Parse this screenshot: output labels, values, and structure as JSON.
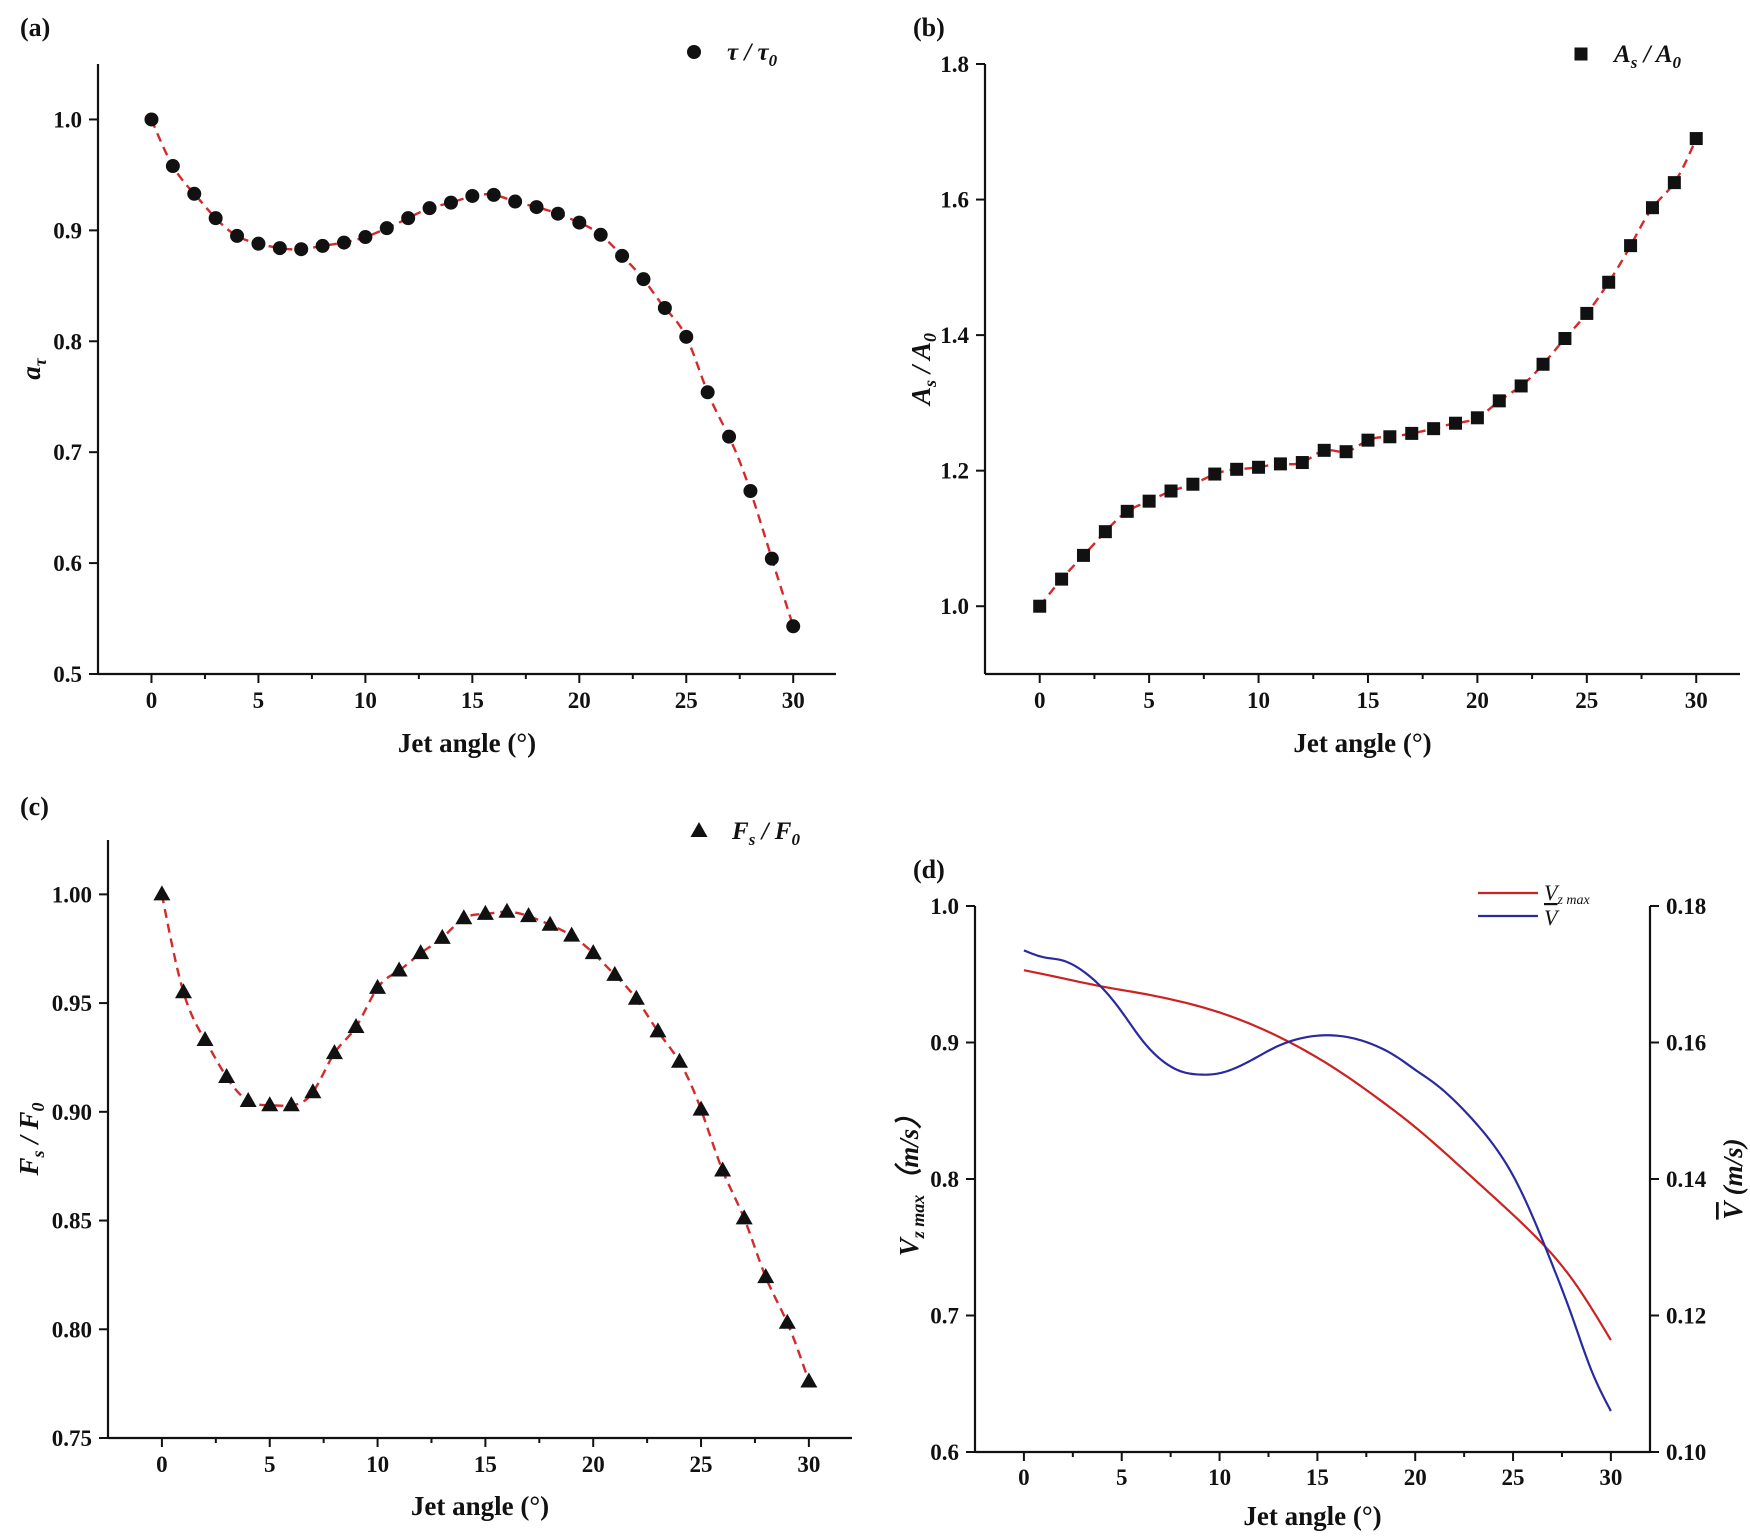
{
  "chart_data": [
    {
      "panel_label": "(a)",
      "type": "scatter",
      "marker": "circle",
      "xlabel": "Jet angle (°)",
      "ylabel": {
        "main": "a",
        "sub": "τ"
      },
      "xlim": [
        -2.5,
        32
      ],
      "ylim": [
        0.5,
        1.05
      ],
      "xticks": [
        "0",
        "5",
        "10",
        "15",
        "20",
        "25",
        "30"
      ],
      "yticks": [
        "0.5",
        "0.6",
        "0.7",
        "0.8",
        "0.9",
        "1.0"
      ],
      "legend": {
        "position": "top-right",
        "text": "τ / τ",
        "sub": "0"
      },
      "fit_color": "#d42a2a",
      "series": [
        {
          "name": "τ / τ0",
          "x": [
            0,
            1,
            2,
            3,
            4,
            5,
            6,
            7,
            8,
            9,
            10,
            11,
            12,
            13,
            14,
            15,
            16,
            17,
            18,
            19,
            20,
            21,
            22,
            23,
            24,
            25,
            26,
            27,
            28,
            29,
            30
          ],
          "y": [
            1.0,
            0.958,
            0.933,
            0.911,
            0.895,
            0.888,
            0.884,
            0.883,
            0.886,
            0.889,
            0.894,
            0.902,
            0.911,
            0.92,
            0.925,
            0.931,
            0.932,
            0.926,
            0.921,
            0.915,
            0.907,
            0.896,
            0.877,
            0.856,
            0.83,
            0.804,
            0.754,
            0.714,
            0.665,
            0.604,
            0.543
          ]
        }
      ]
    },
    {
      "panel_label": "(b)",
      "type": "scatter",
      "marker": "square",
      "xlabel": "Jet angle (°)",
      "ylabel": {
        "main": "A",
        "sub": "s",
        "main2": " / A",
        "sub2": "0"
      },
      "xlim": [
        -2.5,
        32
      ],
      "ylim": [
        0.9,
        1.8
      ],
      "xticks": [
        "0",
        "5",
        "10",
        "15",
        "20",
        "25",
        "30"
      ],
      "yticks": [
        "1.0",
        "1.2",
        "1.4",
        "1.6",
        "1.8"
      ],
      "legend": {
        "position": "top-right",
        "text": "A",
        "sub": "s",
        "text2": " / A",
        "sub2": "0"
      },
      "fit_color": "#d42a2a",
      "series": [
        {
          "name": "As / A0",
          "x": [
            0,
            1,
            2,
            3,
            4,
            5,
            6,
            7,
            8,
            9,
            10,
            11,
            12,
            13,
            14,
            15,
            16,
            17,
            18,
            19,
            20,
            21,
            22,
            23,
            24,
            25,
            26,
            27,
            28,
            29,
            30
          ],
          "y": [
            1.0,
            1.04,
            1.075,
            1.11,
            1.14,
            1.155,
            1.17,
            1.18,
            1.195,
            1.202,
            1.205,
            1.21,
            1.212,
            1.23,
            1.228,
            1.245,
            1.25,
            1.255,
            1.262,
            1.27,
            1.278,
            1.303,
            1.325,
            1.357,
            1.395,
            1.432,
            1.478,
            1.532,
            1.588,
            1.625,
            1.69
          ]
        }
      ]
    },
    {
      "panel_label": "(c)",
      "type": "scatter",
      "marker": "triangle",
      "xlabel": "Jet angle (°)",
      "ylabel": {
        "main": "F",
        "sub": "s",
        "main2": " / F",
        "sub2": "0"
      },
      "xlim": [
        -2.5,
        32
      ],
      "ylim": [
        0.75,
        1.025
      ],
      "xticks": [
        "0",
        "5",
        "10",
        "15",
        "20",
        "25",
        "30"
      ],
      "yticks": [
        "0.75",
        "0.80",
        "0.85",
        "0.90",
        "0.95",
        "1.00"
      ],
      "legend": {
        "position": "top-right",
        "text": "F",
        "sub": "s",
        "text2": " / F",
        "sub2": "0"
      },
      "fit_color": "#d42a2a",
      "series": [
        {
          "name": "Fs / F0",
          "x": [
            0,
            1,
            2,
            3,
            4,
            5,
            6,
            7,
            8,
            9,
            10,
            11,
            12,
            13,
            14,
            15,
            16,
            17,
            18,
            19,
            20,
            21,
            22,
            23,
            24,
            25,
            26,
            27,
            28,
            29,
            30
          ],
          "y": [
            1.0,
            0.955,
            0.933,
            0.916,
            0.905,
            0.903,
            0.903,
            0.909,
            0.927,
            0.939,
            0.957,
            0.965,
            0.973,
            0.98,
            0.989,
            0.991,
            0.992,
            0.99,
            0.986,
            0.981,
            0.973,
            0.963,
            0.952,
            0.937,
            0.923,
            0.901,
            0.873,
            0.851,
            0.824,
            0.803,
            0.776
          ]
        }
      ]
    },
    {
      "panel_label": "(d)",
      "type": "line",
      "xlabel": "Jet angle (°)",
      "ylabel": {
        "main": "V",
        "sub": "z max",
        "unit": "（m/s）"
      },
      "y2label": {
        "main": "V",
        "unit": "(m/s)"
      },
      "xlim": [
        -2.5,
        32
      ],
      "ylim": [
        0.6,
        1.0
      ],
      "y2lim": [
        0.1,
        0.18
      ],
      "xticks": [
        "0",
        "5",
        "10",
        "15",
        "20",
        "25",
        "30"
      ],
      "yticks": [
        "0.6",
        "0.7",
        "0.8",
        "0.9",
        "1.0"
      ],
      "y2ticks": [
        "0.10",
        "0.12",
        "0.14",
        "0.16",
        "0.18"
      ],
      "legend": {
        "position": "top-right"
      },
      "series": [
        {
          "name": "V",
          "name_sub": "z max",
          "axis": "left",
          "color": "#cc2222",
          "x": [
            0,
            2,
            4,
            6,
            8,
            10,
            12,
            14,
            16,
            18,
            20,
            22,
            24,
            26,
            28,
            30
          ],
          "y": [
            0.953,
            0.947,
            0.941,
            0.936,
            0.93,
            0.922,
            0.911,
            0.897,
            0.88,
            0.86,
            0.838,
            0.813,
            0.787,
            0.76,
            0.727,
            0.682
          ]
        },
        {
          "name": "V",
          "axis": "right",
          "color": "#2a2aa0",
          "x": [
            0,
            1,
            2,
            3,
            4,
            5,
            6,
            7,
            8,
            9,
            10,
            11,
            12,
            13,
            14,
            15,
            16,
            17,
            18,
            19,
            20,
            21,
            22,
            23,
            24,
            25,
            26,
            27,
            28,
            29,
            30
          ],
          "y": [
            0.1735,
            0.1725,
            0.172,
            0.1705,
            0.168,
            0.1645,
            0.1605,
            0.1575,
            0.1558,
            0.1553,
            0.1555,
            0.1565,
            0.158,
            0.1595,
            0.1605,
            0.161,
            0.161,
            0.1605,
            0.1595,
            0.158,
            0.156,
            0.154,
            0.1515,
            0.1485,
            0.145,
            0.1405,
            0.1345,
            0.1275,
            0.12,
            0.112,
            0.106
          ]
        }
      ]
    }
  ]
}
